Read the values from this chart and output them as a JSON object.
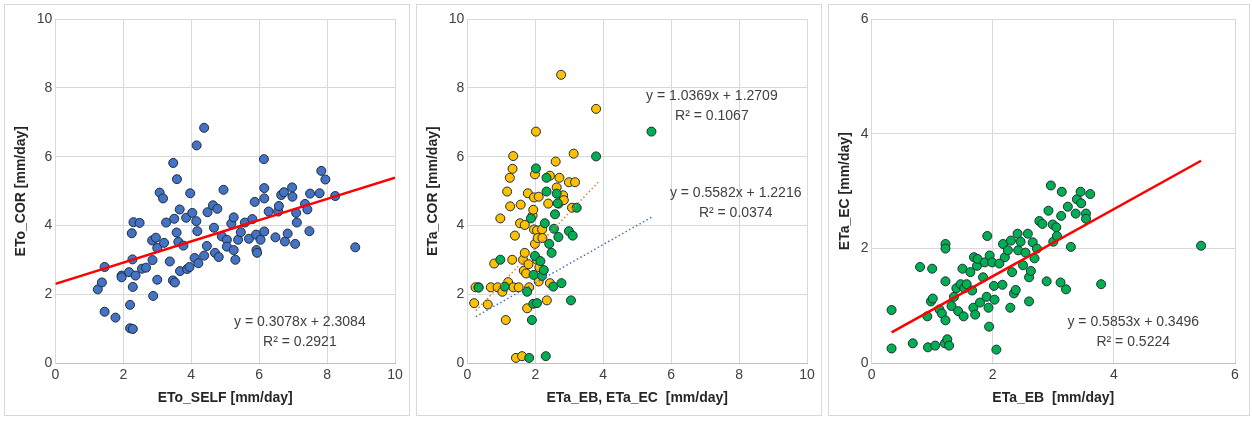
{
  "chart_data": [
    {
      "type": "scatter",
      "xlabel": "ETo_SELF [mm/day]",
      "ylabel": "ETo_COR [mm/day]",
      "xlim": [
        0,
        10
      ],
      "ylim": [
        0,
        10
      ],
      "xticks": [
        0,
        2,
        4,
        6,
        8,
        10
      ],
      "yticks": [
        0,
        2,
        4,
        6,
        8,
        10
      ],
      "grid": true,
      "legend": false,
      "marker": "circle",
      "series": [
        {
          "color": "#4472c4",
          "x": [
            1.25,
            1.37,
            1.45,
            1.45,
            1.77,
            1.95,
            1.95,
            2.2,
            2.2,
            2.28,
            2.17,
            2.28,
            2.27,
            2.25,
            2.3,
            2.48,
            2.36,
            2.55,
            2.67,
            2.86,
            2.88,
            3.0,
            2.85,
            2.96,
            3.0,
            3.07,
            3.17,
            3.2,
            3.26,
            3.37,
            3.47,
            3.46,
            3.52,
            3.58,
            3.5,
            3.57,
            3.62,
            3.66,
            3.67,
            3.77,
            3.85,
            3.88,
            3.95,
            3.97,
            4.03,
            4.16,
            4.15,
            4.18,
            4.1,
            4.21,
            4.38,
            4.38,
            4.48,
            4.46,
            4.64,
            4.67,
            4.77,
            4.7,
            4.81,
            4.95,
            4.9,
            5.05,
            5.05,
            5.18,
            5.25,
            5.25,
            5.3,
            5.38,
            5.46,
            5.58,
            5.7,
            5.8,
            5.87,
            5.92,
            5.94,
            5.91,
            6.04,
            6.14,
            6.15,
            6.15,
            6.15,
            6.28,
            6.48,
            6.56,
            6.58,
            6.65,
            6.73,
            6.76,
            6.84,
            6.97,
            6.98,
            7.06,
            7.09,
            7.11,
            7.35,
            7.42,
            7.48,
            7.5,
            7.78,
            7.83,
            7.95,
            8.24,
            8.83
          ],
          "values": [
            2.15,
            2.35,
            2.8,
            1.5,
            1.33,
            2.55,
            2.5,
            1.7,
            1.02,
            1.0,
            2.65,
            2.22,
            3.02,
            3.78,
            4.1,
            4.08,
            2.55,
            2.75,
            2.78,
            3.0,
            1.96,
            2.43,
            3.57,
            3.65,
            3.35,
            4.96,
            4.79,
            3.5,
            4.09,
            2.96,
            5.82,
            2.41,
            2.35,
            5.35,
            4.2,
            3.8,
            3.53,
            4.47,
            2.68,
            3.42,
            4.23,
            2.74,
            2.8,
            4.94,
            4.37,
            6.33,
            4.13,
            3.84,
            3.06,
            2.91,
            6.84,
            3.13,
            4.39,
            3.41,
            4.59,
            3.94,
            4.49,
            3.21,
            3.09,
            5.04,
            3.69,
            3.59,
            3.39,
            4.06,
            4.24,
            3.29,
            3.01,
            3.59,
            3.81,
            4.09,
            3.62,
            4.19,
            4.69,
            3.29,
            3.21,
            3.74,
            3.59,
            5.93,
            5.09,
            4.79,
            3.83,
            4.41,
            3.66,
            4.41,
            4.57,
            4.89,
            4.97,
            3.54,
            3.77,
            5.11,
            4.84,
            3.47,
            4.37,
            4.09,
            4.63,
            4.47,
            3.84,
            4.93,
            4.94,
            5.59,
            5.34,
            4.86,
            3.37
          ]
        },
        {
          "type": "line",
          "color": "#ff0000",
          "line_style": "solid",
          "marker": "none",
          "x": [
            0,
            10
          ],
          "values": [
            2.31,
            5.39
          ]
        }
      ],
      "annotations": [
        "y = 0.3078x + 2.3084",
        "R² = 0.2921"
      ]
    },
    {
      "type": "scatter",
      "xlabel": "ETa_EB, ETa_EC  [mm/day]",
      "ylabel": "ETa_COR [mm/day]",
      "xlim": [
        0,
        10
      ],
      "ylim": [
        0,
        10
      ],
      "xticks": [
        0,
        2,
        4,
        6,
        8,
        10
      ],
      "yticks": [
        0,
        2,
        4,
        6,
        8,
        10
      ],
      "grid": true,
      "legend": false,
      "marker": "circle",
      "series": [
        {
          "color": "#00b050",
          "x": [
            0.33,
            0.97,
            1.1,
            1.76,
            1.82,
            1.9,
            1.87,
            1.94,
            1.95,
            1.99,
            2.02,
            2.05,
            2.15,
            2.2,
            2.25,
            2.28,
            2.31,
            2.33,
            2.33,
            2.41,
            2.48,
            2.53,
            2.55,
            2.58,
            2.63,
            2.66,
            2.68,
            2.77,
            2.99,
            3.05,
            3.1,
            3.22,
            3.79,
            5.42
          ],
          "values": [
            2.2,
            3.01,
            2.23,
            2.08,
            0.16,
            1.26,
            4.21,
            1.73,
            2.57,
            3.12,
            5.66,
            1.75,
            2.97,
            2.54,
            2.71,
            4.07,
            0.21,
            4.99,
            5.39,
            3.47,
            3.21,
            2.23,
            3.91,
            4.33,
            4.93,
            4.65,
            3.67,
            2.33,
            3.84,
            1.83,
            3.71,
            4.52,
            6.01,
            6.73
          ]
        },
        {
          "color": "#ffc000",
          "x": [
            0.2,
            0.24,
            0.33,
            0.6,
            0.69,
            0.79,
            0.89,
            0.97,
            1.03,
            1.13,
            1.17,
            1.2,
            1.25,
            1.26,
            1.32,
            1.33,
            1.35,
            1.35,
            1.4,
            1.43,
            1.51,
            1.55,
            1.57,
            1.61,
            1.64,
            1.66,
            1.69,
            1.69,
            1.73,
            1.76,
            1.78,
            1.8,
            1.82,
            1.92,
            1.94,
            1.96,
            1.99,
            1.96,
            1.99,
            2.02,
            2.05,
            2.05,
            2.07,
            2.1,
            2.1,
            2.12,
            2.2,
            2.21,
            2.34,
            2.38,
            2.43,
            2.43,
            2.6,
            2.63,
            2.69,
            2.71,
            2.76,
            2.82,
            2.84,
            2.99,
            3.08,
            3.13,
            3.17,
            3.79
          ],
          "values": [
            1.75,
            2.21,
            2.21,
            1.71,
            2.21,
            2.9,
            2.21,
            4.21,
            2.08,
            1.26,
            4.99,
            2.36,
            5.39,
            4.56,
            3.01,
            5.65,
            6.02,
            2.21,
            3.71,
            0.16,
            2.21,
            4.07,
            4.61,
            0.21,
            3.01,
            2.69,
            4.02,
            3.21,
            2.61,
            1.6,
            4.94,
            2.88,
            2.21,
            4.29,
            4.46,
            4.82,
            5.49,
            3.89,
            3.47,
            6.73,
            3.86,
            3.01,
            3.64,
            4.84,
            2.38,
            2.79,
            3.89,
            3.64,
            1.83,
            4.64,
            5.45,
            2.33,
            5.86,
            5.11,
            4.64,
            5.39,
            8.38,
            4.88,
            4.74,
            5.26,
            4.52,
            6.09,
            5.26,
            7.39
          ]
        },
        {
          "type": "line",
          "color": "#ed7d31",
          "line_style": "dotted",
          "marker": "none",
          "x": [
            0.25,
            3.85
          ],
          "values": [
            1.53,
            5.26
          ]
        },
        {
          "type": "line",
          "color": "#4472c4",
          "line_style": "dotted",
          "marker": "none",
          "x": [
            0.25,
            5.45
          ],
          "values": [
            1.36,
            4.26
          ]
        }
      ],
      "annotations": [
        "y = 1.0369x + 1.2709",
        "R² = 0.1067",
        "y = 0.5582x + 1.2216",
        "R² = 0.0374"
      ]
    },
    {
      "type": "scatter",
      "xlabel": "ETa_EB  [mm/day]",
      "ylabel": "ETa_EC [mm/day]",
      "xlim": [
        0,
        6
      ],
      "ylim": [
        0,
        6
      ],
      "xticks": [
        0,
        2,
        4,
        6
      ],
      "yticks": [
        0,
        2,
        4,
        6
      ],
      "grid": true,
      "legend": false,
      "marker": "circle",
      "series": [
        {
          "color": "#00b050",
          "x": [
            0.33,
            0.33,
            0.68,
            0.8,
            0.92,
            0.93,
            1.0,
            0.98,
            1.01,
            1.05,
            1.12,
            1.16,
            1.21,
            1.22,
            1.22,
            1.22,
            1.22,
            1.25,
            1.28,
            1.32,
            1.36,
            1.4,
            1.43,
            1.47,
            1.5,
            1.52,
            1.53,
            1.57,
            1.63,
            1.66,
            1.68,
            1.71,
            1.69,
            1.74,
            1.75,
            1.79,
            1.84,
            1.87,
            1.9,
            1.91,
            1.93,
            1.94,
            1.95,
            1.99,
            2.02,
            2.03,
            2.06,
            2.11,
            2.16,
            2.17,
            2.2,
            2.25,
            2.29,
            2.3,
            2.32,
            2.35,
            2.38,
            2.41,
            2.42,
            2.46,
            2.5,
            2.54,
            2.58,
            2.6,
            2.6,
            2.63,
            2.66,
            2.69,
            2.73,
            2.77,
            2.82,
            2.89,
            2.92,
            2.96,
            2.99,
            3.0,
            3.05,
            3.06,
            3.12,
            3.13,
            3.14,
            3.21,
            3.24,
            3.29,
            3.37,
            3.39,
            3.45,
            3.46,
            3.54,
            3.54,
            3.61,
            3.79,
            5.44
          ],
          "values": [
            0.93,
            0.26,
            0.35,
            1.68,
            0.82,
            0.28,
            1.65,
            1.08,
            1.13,
            0.31,
            0.94,
            0.87,
            0.35,
            2.08,
            2.0,
            1.43,
            0.75,
            0.42,
            0.31,
            1.0,
            1.16,
            1.31,
            0.91,
            1.38,
            1.65,
            0.82,
            1.31,
            1.38,
            1.59,
            1.27,
            0.97,
            0.85,
            1.85,
            1.7,
            1.82,
            1.06,
            1.5,
            1.76,
            1.16,
            2.22,
            0.97,
            0.64,
            1.88,
            1.76,
            1.35,
            1.11,
            0.24,
            1.74,
            1.37,
            2.08,
            1.85,
            1.97,
            0.97,
            2.14,
            1.59,
            1.22,
            1.28,
            2.26,
            1.97,
            2.12,
            1.71,
            1.93,
            2.26,
            1.5,
            1.08,
            1.61,
            2.11,
            1.83,
            2.0,
            2.48,
            2.43,
            1.43,
            2.66,
            3.1,
            2.42,
            2.12,
            2.37,
            2.22,
            1.41,
            2.57,
            2.99,
            1.29,
            2.73,
            2.03,
            2.61,
            2.86,
            2.99,
            2.79,
            2.61,
            2.52,
            2.95,
            1.38,
            2.05
          ]
        },
        {
          "type": "line",
          "color": "#ff0000",
          "line_style": "solid",
          "marker": "none",
          "x": [
            0.33,
            5.44
          ],
          "values": [
            0.54,
            3.53
          ]
        }
      ],
      "annotations": [
        "y = 0.5853x + 0.3496",
        "R² = 0.5224"
      ]
    }
  ]
}
